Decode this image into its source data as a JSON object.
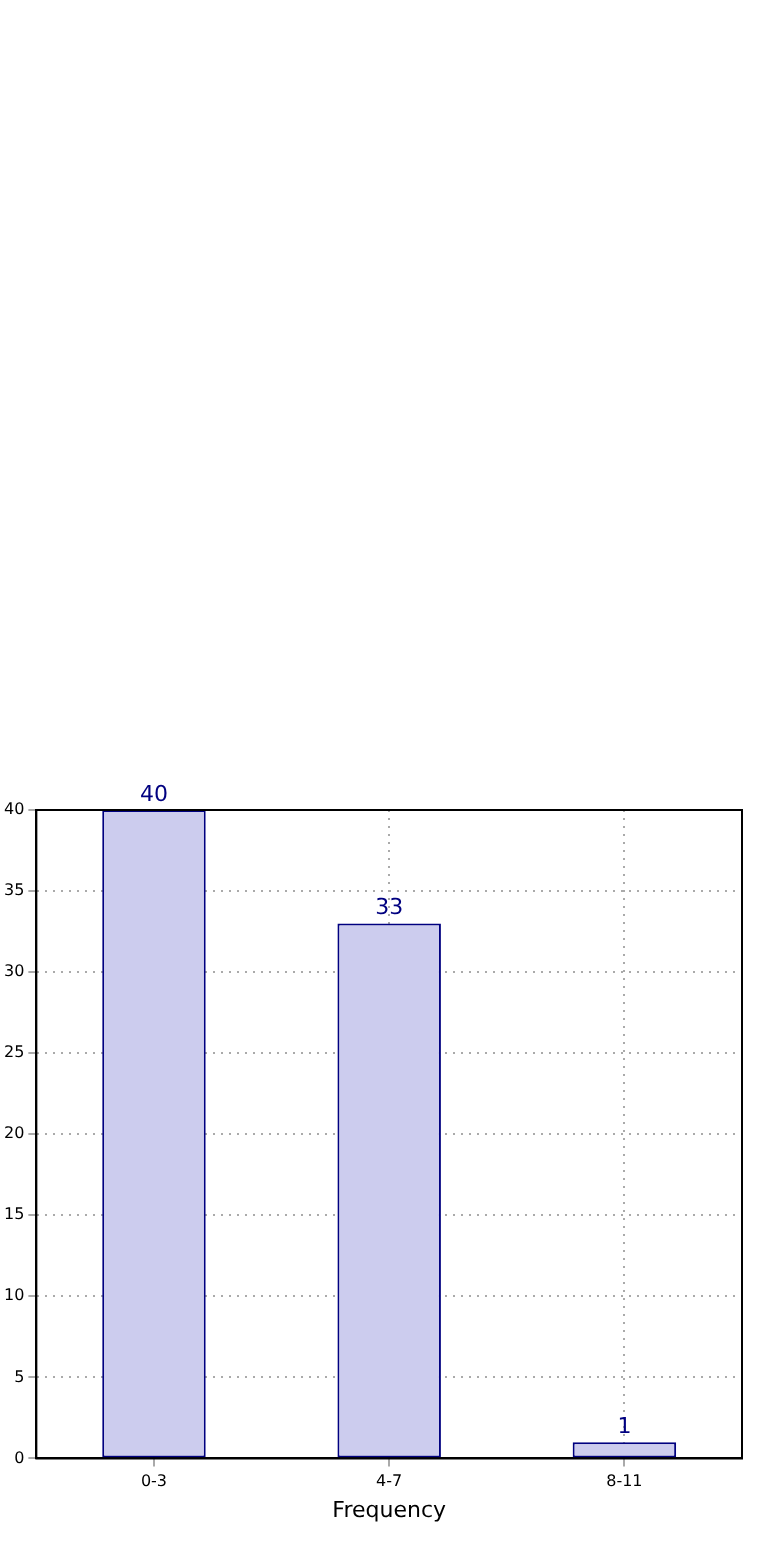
{
  "chart_data": {
    "type": "bar",
    "xlabel": "Frequency",
    "categories": [
      "0-3",
      "4-7",
      "8-11"
    ],
    "values": [
      40,
      33,
      1
    ],
    "color": "#ccccee",
    "ylim": [
      0,
      40
    ],
    "yticks": [
      0,
      5,
      10,
      15,
      20,
      25,
      30,
      35,
      40
    ],
    "grid": true,
    "data_labels": true
  }
}
